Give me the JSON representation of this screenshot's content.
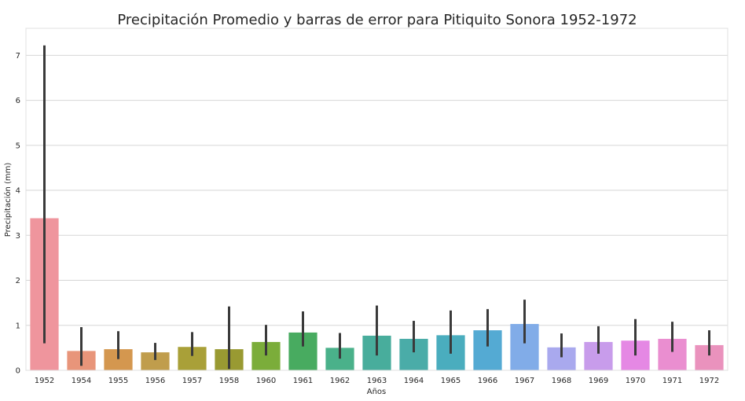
{
  "chart_data": {
    "type": "bar",
    "title": "Precipitación Promedio y barras de error para Pitiquito Sonora 1952-1972",
    "xlabel": "Años",
    "ylabel": "Precipitación (mm)",
    "ylim": [
      0,
      7.6
    ],
    "yticks": [
      0,
      1,
      2,
      3,
      4,
      5,
      6,
      7
    ],
    "ytick_labels": [
      "0",
      "1",
      "2",
      "3",
      "4",
      "5",
      "6",
      "7"
    ],
    "grid": true,
    "categories": [
      "1952",
      "1954",
      "1955",
      "1956",
      "1957",
      "1958",
      "1960",
      "1961",
      "1962",
      "1963",
      "1964",
      "1965",
      "1966",
      "1967",
      "1968",
      "1969",
      "1970",
      "1971",
      "1972"
    ],
    "values": [
      3.38,
      0.43,
      0.47,
      0.4,
      0.52,
      0.47,
      0.63,
      0.84,
      0.5,
      0.77,
      0.7,
      0.78,
      0.89,
      1.03,
      0.51,
      0.63,
      0.66,
      0.7,
      0.56
    ],
    "error_low": [
      0.6,
      0.1,
      0.25,
      0.23,
      0.32,
      0.03,
      0.33,
      0.53,
      0.26,
      0.33,
      0.4,
      0.37,
      0.53,
      0.6,
      0.29,
      0.37,
      0.33,
      0.41,
      0.33
    ],
    "error_high": [
      7.22,
      0.96,
      0.87,
      0.61,
      0.85,
      1.42,
      1.01,
      1.31,
      0.83,
      1.44,
      1.1,
      1.33,
      1.36,
      1.57,
      0.82,
      0.98,
      1.14,
      1.08,
      0.89
    ],
    "colors": [
      "#ef959d",
      "#e8957a",
      "#d4974f",
      "#c09d4c",
      "#a9a038",
      "#999a32",
      "#7bad3a",
      "#48ab60",
      "#4ab18a",
      "#48ad9c",
      "#4aaca8",
      "#4aadbe",
      "#54aad3",
      "#81ace8",
      "#a9a9ee",
      "#c89ceb",
      "#e588e4",
      "#ea8ed0",
      "#ea92bd"
    ]
  }
}
